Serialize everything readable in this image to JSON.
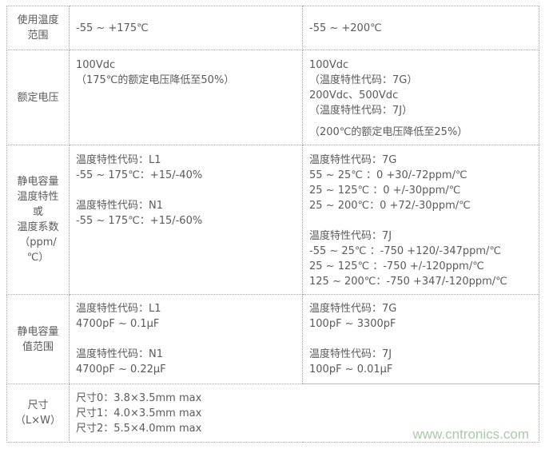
{
  "rows": [
    {
      "header": [
        "使用温度",
        "范围"
      ],
      "col1": [
        "-55 ~ +175℃"
      ],
      "col2": [
        "-55 ~ +200℃"
      ]
    },
    {
      "header": [
        "额定电压"
      ],
      "col1": [
        "100Vdc",
        "（175℃的额定电压降低至50%）"
      ],
      "col2": [
        "100Vdc",
        "（温度特性代码：7G）",
        "200Vdc、500Vdc",
        "（温度特性代码：7J）",
        "（200℃的额定电压降低至25%）"
      ]
    },
    {
      "header": [
        "静电容量",
        "温度特性",
        "或",
        "温度系数",
        "（ppm/",
        "℃）"
      ],
      "col1": [
        "温度特性代码：L1",
        "-55 ~ 175℃：+15/-40%",
        "温度特性代码：N1",
        "-55 ~ 175℃：+15/-60%"
      ],
      "col2": [
        "温度特性代码：7G",
        "55 ~ 25℃ ：0 +30/-72ppm/℃",
        "25 ~ 125℃ ：0 +/-30ppm/℃",
        "25 ~ 200℃：0 +72/-30ppm/℃",
        "温度特性代码：7J",
        "-55 ~ 25℃ ：-750 +120/-347ppm/℃",
        "25 ~ 125℃ ：-750 +/-120ppm/℃",
        "125 ~ 200℃：-750 +347/-120ppm/℃"
      ]
    },
    {
      "header": [
        "静电容量",
        "值范围"
      ],
      "col1": [
        "温度特性代码：L1",
        "4700pF ~ 0.1μF",
        "温度特性代码：N1",
        "4700pF ~ 0.22μF"
      ],
      "col2": [
        "温度特性代码：7G",
        "100pF ~ 3300pF",
        "温度特性代码：7J",
        "100pF ~ 0.01μF"
      ]
    },
    {
      "header": [
        "尺寸",
        "（L×W）"
      ],
      "col1": [
        "尺寸0：3.8×3.5mm max",
        "尺寸1：4.0×3.5mm max",
        "尺寸2：5.5×4.0mm max"
      ]
    }
  ],
  "watermark": "www.cntronics.com"
}
